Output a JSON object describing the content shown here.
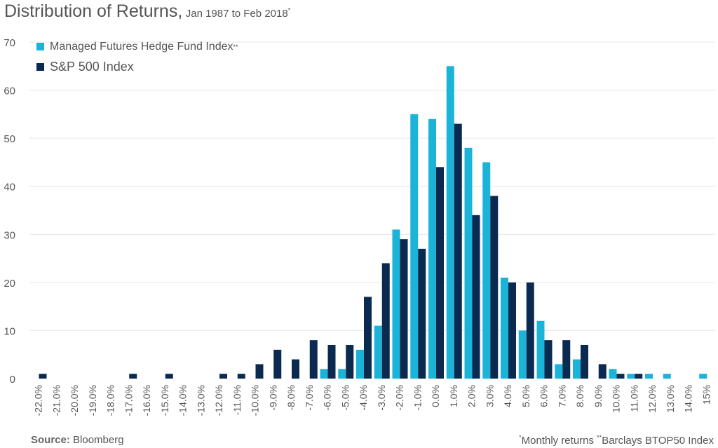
{
  "title": {
    "main": "Distribution of Returns,",
    "subtitle": "Jan 1987 to Feb 2018",
    "subtitle_mark": "*"
  },
  "legend": {
    "items": [
      {
        "label": "Managed Futures Hedge Fund Index",
        "mark": "**",
        "color": "#1BB4D8"
      },
      {
        "label": "S&P 500 Index",
        "mark": "",
        "color": "#0B2A4F"
      }
    ]
  },
  "footer": {
    "source_label": "Source:",
    "source_value": "Bloomberg",
    "note1_mark": "*",
    "note1_text": "Monthly returns",
    "note2_mark": "**",
    "note2_text": "Barclays BTOP50 Index"
  },
  "colors": {
    "managed_futures": "#1BB4D8",
    "sp500": "#0B2A4F",
    "grid": "#E6E6E6",
    "axis_text": "#555555"
  },
  "chart_data": {
    "type": "bar",
    "title": "Distribution of Returns, Jan 1987 to Feb 2018*",
    "xlabel": "",
    "ylabel": "",
    "ylim": [
      0,
      70
    ],
    "yticks": [
      0,
      10,
      20,
      30,
      40,
      50,
      60,
      70
    ],
    "grid": true,
    "legend_position": "top-left",
    "categories": [
      "-22.0%",
      "-21.0%",
      "-20.0%",
      "-19.0%",
      "-18.0%",
      "-17.0%",
      "-16.0%",
      "-15.0%",
      "-14.0%",
      "-13.0%",
      "-12.0%",
      "-11.0%",
      "-10.0%",
      "-9.0%",
      "-8.0%",
      "-7.0%",
      "-6.0%",
      "-5.0%",
      "-4.0%",
      "-3.0%",
      "-2.0%",
      "-1.0%",
      "0.0%",
      "1.0%",
      "2.0%",
      "3.0%",
      "4.0%",
      "5.0%",
      "6.0%",
      "7.0%",
      "8.0%",
      "9.0%",
      "10.0%",
      "11.0%",
      "12.0%",
      "13.0%",
      "14.0%",
      "15%"
    ],
    "series": [
      {
        "name": "Managed Futures Hedge Fund Index",
        "values": [
          0,
          0,
          0,
          0,
          0,
          0,
          0,
          0,
          0,
          0,
          0,
          0,
          0,
          0,
          0,
          0,
          2,
          2,
          6,
          11,
          31,
          55,
          54,
          65,
          48,
          45,
          21,
          10,
          12,
          3,
          4,
          0,
          2,
          1,
          1,
          1,
          0,
          1
        ]
      },
      {
        "name": "S&P 500 Index",
        "values": [
          1,
          0,
          0,
          0,
          0,
          1,
          0,
          1,
          0,
          0,
          1,
          1,
          3,
          6,
          4,
          8,
          7,
          7,
          17,
          24,
          29,
          27,
          44,
          53,
          34,
          38,
          20,
          20,
          8,
          8,
          7,
          3,
          1,
          1,
          0,
          0,
          0,
          0
        ]
      }
    ]
  }
}
